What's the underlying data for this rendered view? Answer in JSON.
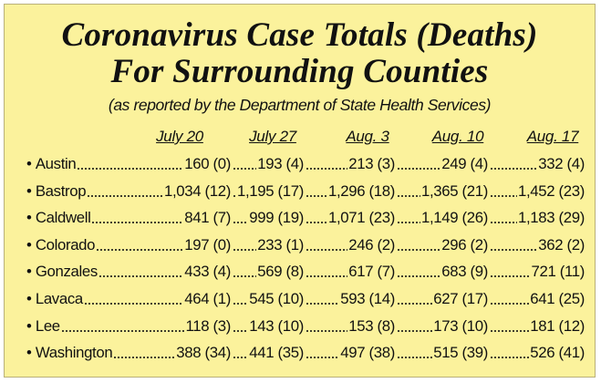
{
  "header": {
    "title": [
      "Coronavirus Case Totals (Deaths)",
      "For Surrounding Counties"
    ],
    "subtitle": "(as reported by the Department of State Health Services)"
  },
  "table": {
    "columns": [
      "July 20",
      "July 27",
      "Aug. 3",
      "Aug. 10",
      "Aug. 17"
    ],
    "rows": [
      {
        "county": "Austin",
        "values": [
          "160 (0)",
          "193 (4)",
          "213 (3)",
          "249 (4)",
          "332 (4)"
        ]
      },
      {
        "county": "Bastrop",
        "values": [
          "1,034 (12)",
          "1,195 (17)",
          "1,296 (18)",
          "1,365 (21)",
          "1,452 (23)"
        ]
      },
      {
        "county": "Caldwell",
        "values": [
          "841 (7)",
          "999 (19)",
          "1,071 (23)",
          "1,149 (26)",
          "1,183 (29)"
        ]
      },
      {
        "county": "Colorado",
        "values": [
          "197 (0)",
          "233 (1)",
          "246 (2)",
          "296 (2)",
          "362 (2)"
        ]
      },
      {
        "county": "Gonzales",
        "values": [
          "433 (4)",
          "569 (8)",
          "617 (7)",
          "683 (9)",
          "721 (11)"
        ]
      },
      {
        "county": "Lavaca",
        "values": [
          "464 (1)",
          "545 (10)",
          "593 (14)",
          "627 (17)",
          "641 (25)"
        ]
      },
      {
        "county": "Lee",
        "values": [
          "118 (3)",
          "143 (10)",
          "153 (8)",
          "173 (10)",
          "181 (12)"
        ]
      },
      {
        "county": "Washington",
        "values": [
          "388 (34)",
          "441 (35)",
          "497 (38)",
          "515 (39)",
          "526 (41)"
        ]
      }
    ]
  }
}
